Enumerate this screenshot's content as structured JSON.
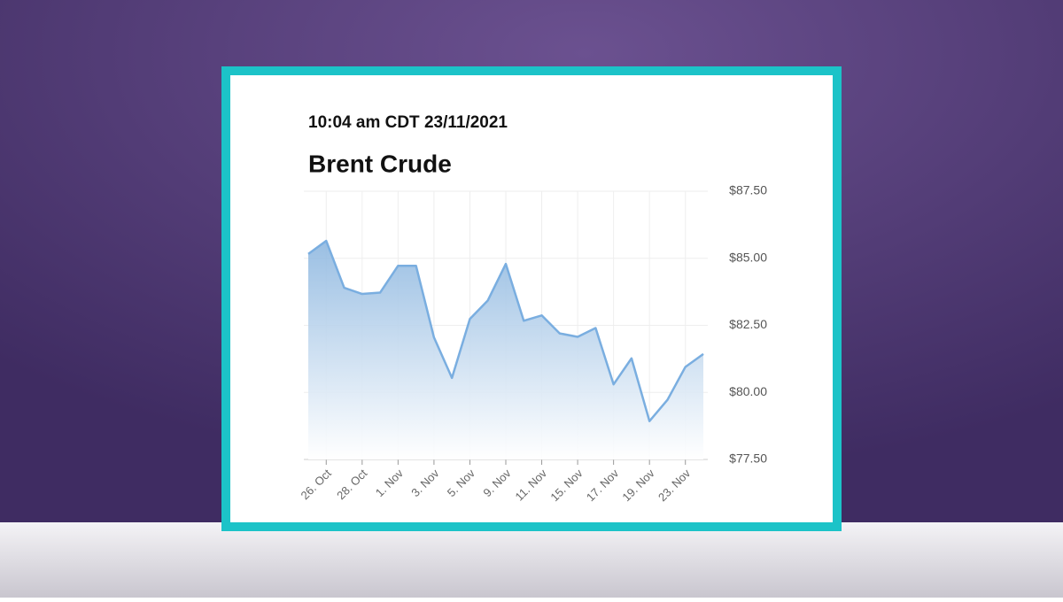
{
  "chart_data": {
    "type": "area",
    "timestamp": "10:04 am CDT 23/11/2021",
    "title": "Brent Crude",
    "categories": [
      null,
      "26. Oct",
      null,
      "28. Oct",
      null,
      "1. Nov",
      null,
      "3. Nov",
      null,
      "5. Nov",
      null,
      "9. Nov",
      null,
      "11. Nov",
      null,
      "15. Nov",
      null,
      "17. Nov",
      null,
      "19. Nov",
      null,
      "23. Nov",
      null
    ],
    "values": [
      85.16,
      85.65,
      83.9,
      83.67,
      83.72,
      84.72,
      84.72,
      82.05,
      80.54,
      82.74,
      83.43,
      84.79,
      82.67,
      82.87,
      82.2,
      82.07,
      82.4,
      80.3,
      81.27,
      78.93,
      79.72,
      80.95,
      81.43
    ],
    "color": "#7aaee0",
    "ylim": [
      77.5,
      87.5
    ],
    "yticks": [
      {
        "value": 77.5,
        "label": "$77.50"
      },
      {
        "value": 80,
        "label": "$80.00"
      },
      {
        "value": 82.5,
        "label": "$82.50"
      },
      {
        "value": 85,
        "label": "$85.00"
      },
      {
        "value": 87.5,
        "label": "$87.50"
      }
    ],
    "grid": true
  }
}
